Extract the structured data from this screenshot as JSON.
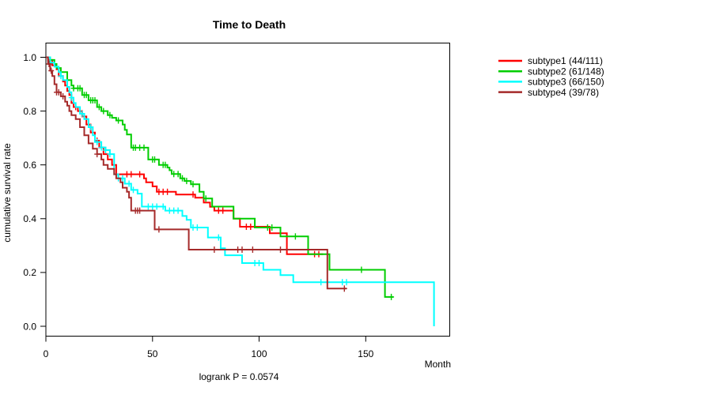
{
  "chart_data": {
    "type": "line",
    "variant": "kaplan-meier-step",
    "title": "Time to Death",
    "xlabel": "Month",
    "ylabel": "cumulative survival rate",
    "annotation": "logrank P = 0.0574",
    "xlim": [
      0,
      189.4
    ],
    "ylim": [
      0,
      1
    ],
    "grid": false,
    "legend_position": "right-outside",
    "x_ticks": {
      "values": [
        0,
        50,
        100,
        150
      ],
      "labels": [
        "0",
        "50",
        "100",
        "150"
      ]
    },
    "y_ticks": {
      "values": [
        0,
        0.2,
        0.4,
        0.6,
        0.8,
        1.0
      ],
      "labels": [
        "0.0",
        "0.2",
        "0.4",
        "0.6",
        "0.8",
        "1.0"
      ]
    },
    "series": [
      {
        "name": "subtype1 (44/111)",
        "color": "#ff0000",
        "points": [
          [
            0,
            1.0
          ],
          [
            1,
            0.99
          ],
          [
            3,
            0.97
          ],
          [
            5,
            0.955
          ],
          [
            6,
            0.93
          ],
          [
            8,
            0.91
          ],
          [
            9,
            0.895
          ],
          [
            10,
            0.875
          ],
          [
            11,
            0.86
          ],
          [
            12,
            0.83
          ],
          [
            13,
            0.815
          ],
          [
            15,
            0.8
          ],
          [
            17,
            0.78
          ],
          [
            19,
            0.75
          ],
          [
            21,
            0.72
          ],
          [
            23,
            0.69
          ],
          [
            25,
            0.665
          ],
          [
            27,
            0.64
          ],
          [
            29,
            0.62
          ],
          [
            31,
            0.6
          ],
          [
            33,
            0.565
          ],
          [
            46,
            0.55
          ],
          [
            47,
            0.535
          ],
          [
            50,
            0.52
          ],
          [
            52,
            0.5
          ],
          [
            61,
            0.49
          ],
          [
            70,
            0.478
          ],
          [
            74,
            0.46
          ],
          [
            77,
            0.444
          ],
          [
            79,
            0.43
          ],
          [
            88,
            0.4
          ],
          [
            91,
            0.37
          ],
          [
            105,
            0.346
          ],
          [
            113,
            0.268
          ],
          [
            130,
            0.268
          ]
        ],
        "censors": [
          2,
          14,
          20,
          24,
          38,
          40,
          44,
          53,
          55,
          57,
          69,
          81,
          83,
          94,
          96,
          126,
          128
        ]
      },
      {
        "name": "subtype2 (61/148)",
        "color": "#00cd00",
        "points": [
          [
            0,
            1.0
          ],
          [
            2,
            0.99
          ],
          [
            4,
            0.975
          ],
          [
            5,
            0.96
          ],
          [
            7,
            0.945
          ],
          [
            10,
            0.915
          ],
          [
            12,
            0.895
          ],
          [
            13,
            0.885
          ],
          [
            17,
            0.86
          ],
          [
            20,
            0.84
          ],
          [
            24,
            0.815
          ],
          [
            26,
            0.8
          ],
          [
            29,
            0.785
          ],
          [
            31,
            0.775
          ],
          [
            33,
            0.765
          ],
          [
            36,
            0.75
          ],
          [
            37,
            0.73
          ],
          [
            38,
            0.713
          ],
          [
            40,
            0.664
          ],
          [
            48,
            0.62
          ],
          [
            53,
            0.6
          ],
          [
            57,
            0.59
          ],
          [
            58,
            0.58
          ],
          [
            59,
            0.566
          ],
          [
            63,
            0.55
          ],
          [
            65,
            0.54
          ],
          [
            68,
            0.528
          ],
          [
            72,
            0.5
          ],
          [
            74,
            0.475
          ],
          [
            78,
            0.445
          ],
          [
            88,
            0.4
          ],
          [
            98,
            0.367
          ],
          [
            110,
            0.334
          ],
          [
            123,
            0.268
          ],
          [
            133,
            0.21
          ],
          [
            159,
            0.109
          ],
          [
            163,
            0.109
          ]
        ],
        "censors": [
          10,
          13,
          15,
          16,
          18,
          19,
          21,
          22,
          23,
          25,
          27,
          30,
          34,
          41,
          42,
          44,
          46,
          50,
          51,
          55,
          56,
          60,
          62,
          64,
          66,
          69,
          75,
          104,
          106,
          117,
          148,
          162
        ]
      },
      {
        "name": "subtype3 (66/150)",
        "color": "#00ffff",
        "points": [
          [
            0,
            1.0
          ],
          [
            2,
            0.98
          ],
          [
            4,
            0.965
          ],
          [
            6,
            0.945
          ],
          [
            7,
            0.93
          ],
          [
            8,
            0.915
          ],
          [
            10,
            0.89
          ],
          [
            11,
            0.87
          ],
          [
            12,
            0.85
          ],
          [
            13,
            0.83
          ],
          [
            14,
            0.815
          ],
          [
            16,
            0.79
          ],
          [
            18,
            0.77
          ],
          [
            20,
            0.74
          ],
          [
            22,
            0.71
          ],
          [
            23,
            0.685
          ],
          [
            26,
            0.665
          ],
          [
            28,
            0.655
          ],
          [
            30,
            0.64
          ],
          [
            32,
            0.565
          ],
          [
            34,
            0.55
          ],
          [
            37,
            0.53
          ],
          [
            40,
            0.507
          ],
          [
            43,
            0.493
          ],
          [
            45,
            0.445
          ],
          [
            56,
            0.43
          ],
          [
            64,
            0.41
          ],
          [
            66,
            0.396
          ],
          [
            68,
            0.367
          ],
          [
            76,
            0.33
          ],
          [
            82,
            0.29
          ],
          [
            84,
            0.264
          ],
          [
            92,
            0.235
          ],
          [
            102,
            0.21
          ],
          [
            110,
            0.19
          ],
          [
            116,
            0.164
          ],
          [
            182,
            0.164
          ],
          [
            182,
            0.0
          ]
        ],
        "censors": [
          7,
          12,
          17,
          21,
          24,
          26,
          28,
          30,
          34,
          36,
          39,
          41,
          48,
          50,
          52,
          55,
          58,
          60,
          62,
          69,
          71,
          81,
          98,
          100,
          129,
          139,
          141
        ]
      },
      {
        "name": "subtype4 (39/78)",
        "color": "#a52a2a",
        "points": [
          [
            0,
            1.0
          ],
          [
            1,
            0.975
          ],
          [
            2,
            0.95
          ],
          [
            3,
            0.93
          ],
          [
            4,
            0.9
          ],
          [
            5,
            0.87
          ],
          [
            7,
            0.855
          ],
          [
            9,
            0.835
          ],
          [
            10,
            0.82
          ],
          [
            11,
            0.8
          ],
          [
            12,
            0.785
          ],
          [
            14,
            0.77
          ],
          [
            16,
            0.74
          ],
          [
            18,
            0.71
          ],
          [
            20,
            0.68
          ],
          [
            22,
            0.66
          ],
          [
            24,
            0.64
          ],
          [
            26,
            0.62
          ],
          [
            27,
            0.6
          ],
          [
            29,
            0.585
          ],
          [
            32,
            0.565
          ],
          [
            33,
            0.55
          ],
          [
            35,
            0.535
          ],
          [
            36,
            0.515
          ],
          [
            38,
            0.5
          ],
          [
            39,
            0.478
          ],
          [
            40,
            0.43
          ],
          [
            51,
            0.36
          ],
          [
            67,
            0.285
          ],
          [
            132,
            0.14
          ],
          [
            141,
            0.14
          ]
        ],
        "censors": [
          1.5,
          2.5,
          5,
          6,
          8,
          24,
          42,
          43,
          44,
          53,
          79,
          90,
          92,
          97,
          110,
          140
        ]
      }
    ]
  }
}
